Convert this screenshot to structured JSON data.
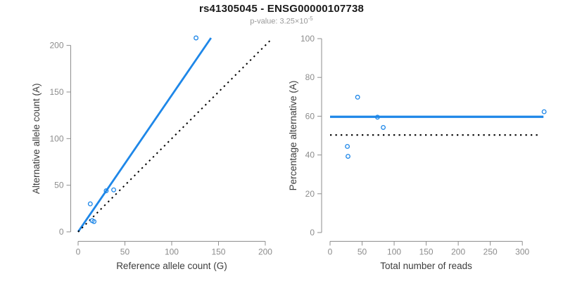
{
  "header": {
    "title": "rs41305045 - ENSG00000107738",
    "subtitle_prefix": "p-value: 3.25×10",
    "subtitle_exponent": "-5"
  },
  "colors": {
    "accent": "#1E87E8",
    "identity": "#000000",
    "axis": "#8E8E8E",
    "tick_label": "#8C8C8C",
    "axis_title": "#3D3D3D",
    "title": "#1A1A1A",
    "subtitle": "#9A9A9A"
  },
  "chart_data": [
    {
      "type": "scatter",
      "name": "allele-counts-panel",
      "xlabel": "Reference allele count (G)",
      "ylabel": "Alternative allele count (A)",
      "xticks": [
        0,
        50,
        100,
        150,
        200
      ],
      "yticks": [
        0,
        50,
        100,
        150,
        200
      ],
      "xlim": [
        0,
        206.8
      ],
      "ylim": [
        0,
        208
      ],
      "grid": false,
      "legend": "none",
      "points": [
        [
          13,
          30
        ],
        [
          15,
          12
        ],
        [
          17,
          11
        ],
        [
          30,
          44
        ],
        [
          38,
          45
        ],
        [
          126,
          208
        ]
      ],
      "lines": [
        {
          "name": "fit-line",
          "x1": 0,
          "y1": 0,
          "x2": 142,
          "y2": 208,
          "style": "solid",
          "color": "accent",
          "width": 2.8
        },
        {
          "name": "identity-line",
          "x1": 0,
          "y1": 0,
          "x2": 206.8,
          "y2": 206.8,
          "style": "dotted",
          "color": "identity",
          "width": 2
        }
      ]
    },
    {
      "type": "scatter",
      "name": "percentage-panel",
      "xlabel": "Total number of reads",
      "ylabel": "Percentage alternative (A)",
      "xticks": [
        0,
        50,
        100,
        150,
        200,
        250,
        300
      ],
      "yticks": [
        0,
        20,
        40,
        60,
        80,
        100
      ],
      "xlim": [
        0,
        347
      ],
      "ylim": [
        0,
        100
      ],
      "grid": false,
      "legend": "none",
      "points": [
        [
          27,
          44.4
        ],
        [
          28,
          39.3
        ],
        [
          43,
          69.8
        ],
        [
          74,
          59.5
        ],
        [
          83,
          54.2
        ],
        [
          334,
          62.3
        ]
      ],
      "lines": [
        {
          "name": "mean-percentage-line",
          "x1": 0,
          "y1": 59.7,
          "x2": 333,
          "y2": 59.7,
          "style": "solid",
          "color": "accent",
          "width": 3.2
        },
        {
          "name": "expected-50-line",
          "x1": 0,
          "y1": 50.3,
          "x2": 327,
          "y2": 50.3,
          "style": "dotted",
          "color": "identity",
          "width": 2.2
        }
      ]
    }
  ]
}
